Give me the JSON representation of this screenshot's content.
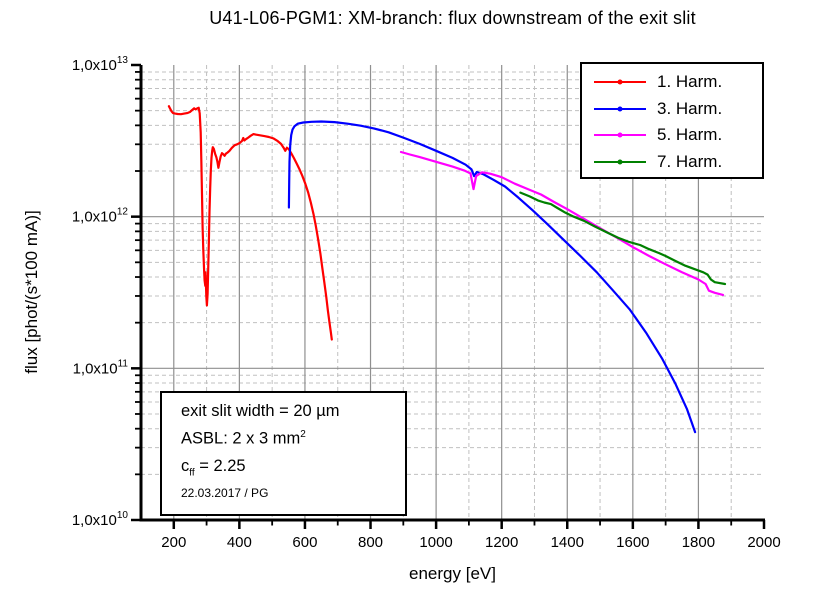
{
  "chart_data": {
    "type": "line",
    "title": "U41-L06-PGM1: XM-branch: flux downstream of the exit slit",
    "xlabel": "energy [eV]",
    "ylabel": "flux [phot/(s*100 mA)]",
    "xlim": [
      100,
      2000
    ],
    "ylim": [
      10000000000.0,
      10000000000000.0
    ],
    "x_scale": "linear",
    "y_scale": "log",
    "grid": {
      "major_color": "#8f8f8f",
      "minor_color": "#c0c0c0",
      "minor_dash": "4 3"
    },
    "legend_position": "top-right",
    "x_ticks": [
      200,
      400,
      600,
      800,
      1000,
      1200,
      1400,
      1600,
      1800,
      2000
    ],
    "x_minor_ticks": [
      300,
      500,
      700,
      900,
      1100,
      1300,
      1500,
      1700,
      1900
    ],
    "y_tick_mantissa": "1,0x10",
    "y_ticks": [
      {
        "value": 10000000000000.0,
        "exp": "13"
      },
      {
        "value": 1000000000000.0,
        "exp": "12"
      },
      {
        "value": 100000000000.0,
        "exp": "11"
      },
      {
        "value": 10000000000.0,
        "exp": "10"
      }
    ],
    "series": [
      {
        "name": "1. Harm.",
        "color": "#ff0000",
        "points": [
          [
            185,
            5350000000000.0
          ],
          [
            189,
            5150000000000.0
          ],
          [
            193,
            4950000000000.0
          ],
          [
            198,
            4820000000000.0
          ],
          [
            204,
            4780000000000.0
          ],
          [
            212,
            4750000000000.0
          ],
          [
            222,
            4740000000000.0
          ],
          [
            232,
            4780000000000.0
          ],
          [
            241,
            4820000000000.0
          ],
          [
            249,
            4900000000000.0
          ],
          [
            256,
            5050000000000.0
          ],
          [
            262,
            5180000000000.0
          ],
          [
            267,
            5100000000000.0
          ],
          [
            272,
            5180000000000.0
          ],
          [
            276,
            5220000000000.0
          ],
          [
            279,
            4800000000000.0
          ],
          [
            282,
            3600000000000.0
          ],
          [
            284,
            2400000000000.0
          ],
          [
            286,
            1400000000000.0
          ],
          [
            288,
            850000000000.0
          ],
          [
            290,
            600000000000.0
          ],
          [
            292,
            460000000000.0
          ],
          [
            294,
            380000000000.0
          ],
          [
            296,
            350000000000.0
          ],
          [
            297,
            430000000000.0
          ],
          [
            299,
            300000000000.0
          ],
          [
            301,
            260000000000.0
          ],
          [
            303,
            310000000000.0
          ],
          [
            305,
            450000000000.0
          ],
          [
            307,
            700000000000.0
          ],
          [
            309,
            1080000000000.0
          ],
          [
            311,
            1550000000000.0
          ],
          [
            313,
            2000000000000.0
          ],
          [
            315,
            2450000000000.0
          ],
          [
            317,
            2720000000000.0
          ],
          [
            319,
            2870000000000.0
          ],
          [
            322,
            2800000000000.0
          ],
          [
            326,
            2600000000000.0
          ],
          [
            330,
            2460000000000.0
          ],
          [
            333,
            2300000000000.0
          ],
          [
            336,
            2100000000000.0
          ],
          [
            339,
            2280000000000.0
          ],
          [
            343,
            2500000000000.0
          ],
          [
            347,
            2620000000000.0
          ],
          [
            351,
            2580000000000.0
          ],
          [
            355,
            2520000000000.0
          ],
          [
            359,
            2600000000000.0
          ],
          [
            364,
            2650000000000.0
          ],
          [
            370,
            2720000000000.0
          ],
          [
            377,
            2840000000000.0
          ],
          [
            385,
            2950000000000.0
          ],
          [
            393,
            3000000000000.0
          ],
          [
            401,
            3060000000000.0
          ],
          [
            408,
            3160000000000.0
          ],
          [
            412,
            3300000000000.0
          ],
          [
            415,
            3180000000000.0
          ],
          [
            420,
            3240000000000.0
          ],
          [
            427,
            3320000000000.0
          ],
          [
            435,
            3420000000000.0
          ],
          [
            443,
            3500000000000.0
          ],
          [
            452,
            3470000000000.0
          ],
          [
            463,
            3440000000000.0
          ],
          [
            476,
            3400000000000.0
          ],
          [
            490,
            3350000000000.0
          ],
          [
            504,
            3280000000000.0
          ],
          [
            517,
            3150000000000.0
          ],
          [
            527,
            3020000000000.0
          ],
          [
            535,
            2850000000000.0
          ],
          [
            540,
            2720000000000.0
          ],
          [
            545,
            2850000000000.0
          ],
          [
            551,
            2780000000000.0
          ],
          [
            558,
            2620000000000.0
          ],
          [
            566,
            2440000000000.0
          ],
          [
            574,
            2260000000000.0
          ],
          [
            583,
            2060000000000.0
          ],
          [
            592,
            1860000000000.0
          ],
          [
            601,
            1650000000000.0
          ],
          [
            610,
            1440000000000.0
          ],
          [
            618,
            1240000000000.0
          ],
          [
            626,
            1040000000000.0
          ],
          [
            633,
            870000000000.0
          ],
          [
            640,
            710000000000.0
          ],
          [
            647,
            570000000000.0
          ],
          [
            653,
            460000000000.0
          ],
          [
            659,
            370000000000.0
          ],
          [
            665,
            295000000000.0
          ],
          [
            670,
            240000000000.0
          ],
          [
            675,
            200000000000.0
          ],
          [
            679,
            172000000000.0
          ],
          [
            682,
            155000000000.0
          ]
        ]
      },
      {
        "name": "3. Harm.",
        "color": "#0000ff",
        "points": [
          [
            551,
            1150000000000.0
          ],
          [
            552,
            1700000000000.0
          ],
          [
            553,
            2300000000000.0
          ],
          [
            555,
            2950000000000.0
          ],
          [
            558,
            3450000000000.0
          ],
          [
            562,
            3750000000000.0
          ],
          [
            568,
            3950000000000.0
          ],
          [
            578,
            4100000000000.0
          ],
          [
            595,
            4180000000000.0
          ],
          [
            620,
            4220000000000.0
          ],
          [
            650,
            4240000000000.0
          ],
          [
            690,
            4200000000000.0
          ],
          [
            730,
            4100000000000.0
          ],
          [
            770,
            3980000000000.0
          ],
          [
            810,
            3820000000000.0
          ],
          [
            855,
            3600000000000.0
          ],
          [
            900,
            3320000000000.0
          ],
          [
            950,
            3020000000000.0
          ],
          [
            1000,
            2720000000000.0
          ],
          [
            1050,
            2440000000000.0
          ],
          [
            1090,
            2200000000000.0
          ],
          [
            1108,
            2050000000000.0
          ],
          [
            1116,
            1850000000000.0
          ],
          [
            1124,
            1970000000000.0
          ],
          [
            1145,
            1900000000000.0
          ],
          [
            1175,
            1750000000000.0
          ],
          [
            1210,
            1580000000000.0
          ],
          [
            1250,
            1340000000000.0
          ],
          [
            1295,
            1100000000000.0
          ],
          [
            1340,
            890000000000.0
          ],
          [
            1390,
            700000000000.0
          ],
          [
            1440,
            550000000000.0
          ],
          [
            1490,
            430000000000.0
          ],
          [
            1540,
            325000000000.0
          ],
          [
            1590,
            245000000000.0
          ],
          [
            1640,
            172000000000.0
          ],
          [
            1690,
            115000000000.0
          ],
          [
            1730,
            79000000000.0
          ],
          [
            1765,
            54000000000.0
          ],
          [
            1790,
            38000000000.0
          ]
        ]
      },
      {
        "name": "5. Harm.",
        "color": "#ff00ff",
        "points": [
          [
            893,
            2670000000000.0
          ],
          [
            920,
            2570000000000.0
          ],
          [
            950,
            2470000000000.0
          ],
          [
            1000,
            2300000000000.0
          ],
          [
            1050,
            2140000000000.0
          ],
          [
            1085,
            2020000000000.0
          ],
          [
            1105,
            1930000000000.0
          ],
          [
            1114,
            1520000000000.0
          ],
          [
            1122,
            1850000000000.0
          ],
          [
            1140,
            1960000000000.0
          ],
          [
            1165,
            1920000000000.0
          ],
          [
            1200,
            1820000000000.0
          ],
          [
            1240,
            1650000000000.0
          ],
          [
            1280,
            1520000000000.0
          ],
          [
            1320,
            1400000000000.0
          ],
          [
            1360,
            1250000000000.0
          ],
          [
            1400,
            1120000000000.0
          ],
          [
            1450,
            970000000000.0
          ],
          [
            1500,
            840000000000.0
          ],
          [
            1550,
            730000000000.0
          ],
          [
            1600,
            630000000000.0
          ],
          [
            1650,
            550000000000.0
          ],
          [
            1700,
            485000000000.0
          ],
          [
            1750,
            430000000000.0
          ],
          [
            1800,
            385000000000.0
          ],
          [
            1822,
            360000000000.0
          ],
          [
            1832,
            325000000000.0
          ],
          [
            1850,
            315000000000.0
          ],
          [
            1875,
            305000000000.0
          ]
        ]
      },
      {
        "name": "7. Harm.",
        "color": "#008000",
        "points": [
          [
            1257,
            1440000000000.0
          ],
          [
            1285,
            1360000000000.0
          ],
          [
            1310,
            1280000000000.0
          ],
          [
            1330,
            1240000000000.0
          ],
          [
            1350,
            1210000000000.0
          ],
          [
            1370,
            1140000000000.0
          ],
          [
            1395,
            1060000000000.0
          ],
          [
            1420,
            1000000000000.0
          ],
          [
            1450,
            940000000000.0
          ],
          [
            1485,
            860000000000.0
          ],
          [
            1520,
            790000000000.0
          ],
          [
            1555,
            725000000000.0
          ],
          [
            1590,
            680000000000.0
          ],
          [
            1622,
            650000000000.0
          ],
          [
            1650,
            610000000000.0
          ],
          [
            1680,
            575000000000.0
          ],
          [
            1700,
            550000000000.0
          ],
          [
            1730,
            510000000000.0
          ],
          [
            1760,
            475000000000.0
          ],
          [
            1790,
            450000000000.0
          ],
          [
            1815,
            430000000000.0
          ],
          [
            1828,
            415000000000.0
          ],
          [
            1838,
            385000000000.0
          ],
          [
            1850,
            370000000000.0
          ],
          [
            1881,
            360000000000.0
          ]
        ]
      }
    ]
  },
  "annotation": {
    "exit_slit": "exit slit width = 20 µm",
    "asbl_pre": "ASBL: 2 x 3 mm",
    "asbl_sup": "2",
    "cff_pre": "c",
    "cff_sub": "ff",
    "cff_post": " = 2.25",
    "date": "22.03.2017 / PG"
  }
}
